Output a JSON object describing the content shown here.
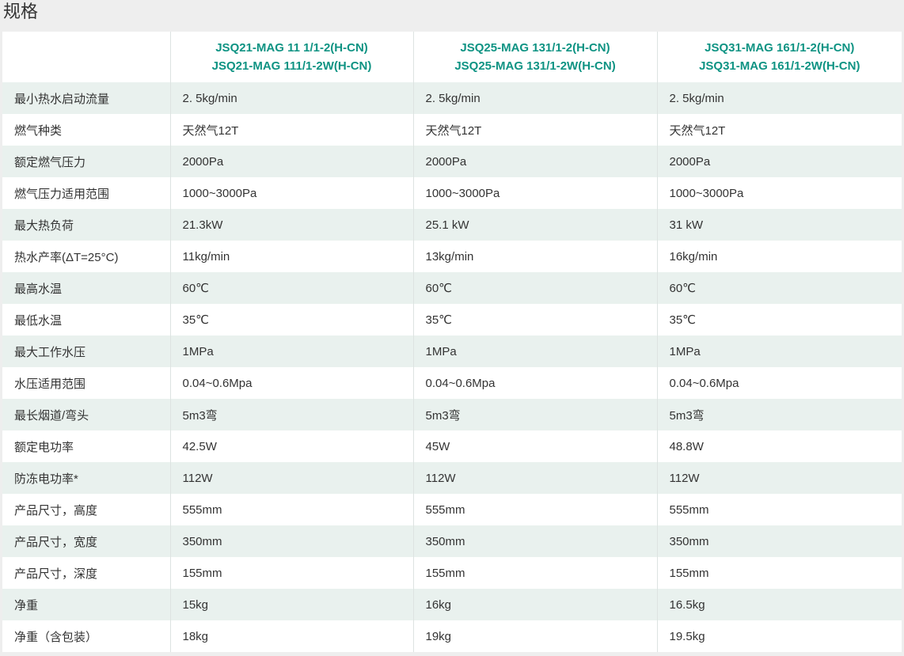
{
  "title": "规格",
  "colors": {
    "header_text": "#0e9383",
    "stripe": "#e9f1ee"
  },
  "columns": [
    {
      "line1": "JSQ21-MAG 11 1/1-2(H-CN)",
      "line2": "JSQ21-MAG 111/1-2W(H-CN)"
    },
    {
      "line1": "JSQ25-MAG 131/1-2(H-CN)",
      "line2": "JSQ25-MAG 131/1-2W(H-CN)"
    },
    {
      "line1": "JSQ31-MAG 161/1-2(H-CN)",
      "line2": "JSQ31-MAG 161/1-2W(H-CN)"
    }
  ],
  "rows": [
    {
      "label": "最小热水启动流量",
      "values": [
        "2. 5kg/min",
        "2. 5kg/min",
        "2. 5kg/min"
      ]
    },
    {
      "label": "燃气种类",
      "values": [
        "天然气12T",
        "天然气12T",
        "天然气12T"
      ]
    },
    {
      "label": "额定燃气压力",
      "values": [
        "2000Pa",
        "2000Pa",
        "2000Pa"
      ]
    },
    {
      "label": "燃气压力适用范围",
      "values": [
        "1000~3000Pa",
        "1000~3000Pa",
        "1000~3000Pa"
      ]
    },
    {
      "label": "最大热负荷",
      "values": [
        "21.3kW",
        "25.1 kW",
        "31 kW"
      ]
    },
    {
      "label": "热水产率(ΔT=25°C)",
      "values": [
        "11kg/min",
        "13kg/min",
        "16kg/min"
      ]
    },
    {
      "label": "最高水温",
      "values": [
        "60℃",
        "60℃",
        "60℃"
      ]
    },
    {
      "label": "最低水温",
      "values": [
        "35℃",
        "35℃",
        "35℃"
      ]
    },
    {
      "label": "最大工作水压",
      "values": [
        "1MPa",
        "1MPa",
        "1MPa"
      ]
    },
    {
      "label": "水压适用范围",
      "values": [
        "0.04~0.6Mpa",
        "0.04~0.6Mpa",
        "0.04~0.6Mpa"
      ]
    },
    {
      "label": "最长烟道/弯头",
      "values": [
        "5m3弯",
        "5m3弯",
        "5m3弯"
      ]
    },
    {
      "label": "额定电功率",
      "values": [
        "42.5W",
        "45W",
        "48.8W"
      ]
    },
    {
      "label": "防冻电功率*",
      "values": [
        "112W",
        "112W",
        "112W"
      ]
    },
    {
      "label": "产品尺寸，高度",
      "values": [
        "555mm",
        "555mm",
        "555mm"
      ]
    },
    {
      "label": "产品尺寸，宽度",
      "values": [
        "350mm",
        "350mm",
        "350mm"
      ]
    },
    {
      "label": "产品尺寸，深度",
      "values": [
        "155mm",
        "155mm",
        "155mm"
      ]
    },
    {
      "label": "净重",
      "values": [
        "15kg",
        "16kg",
        "16.5kg"
      ]
    },
    {
      "label": "净重（含包装）",
      "values": [
        "18kg",
        "19kg",
        "19.5kg"
      ]
    }
  ]
}
